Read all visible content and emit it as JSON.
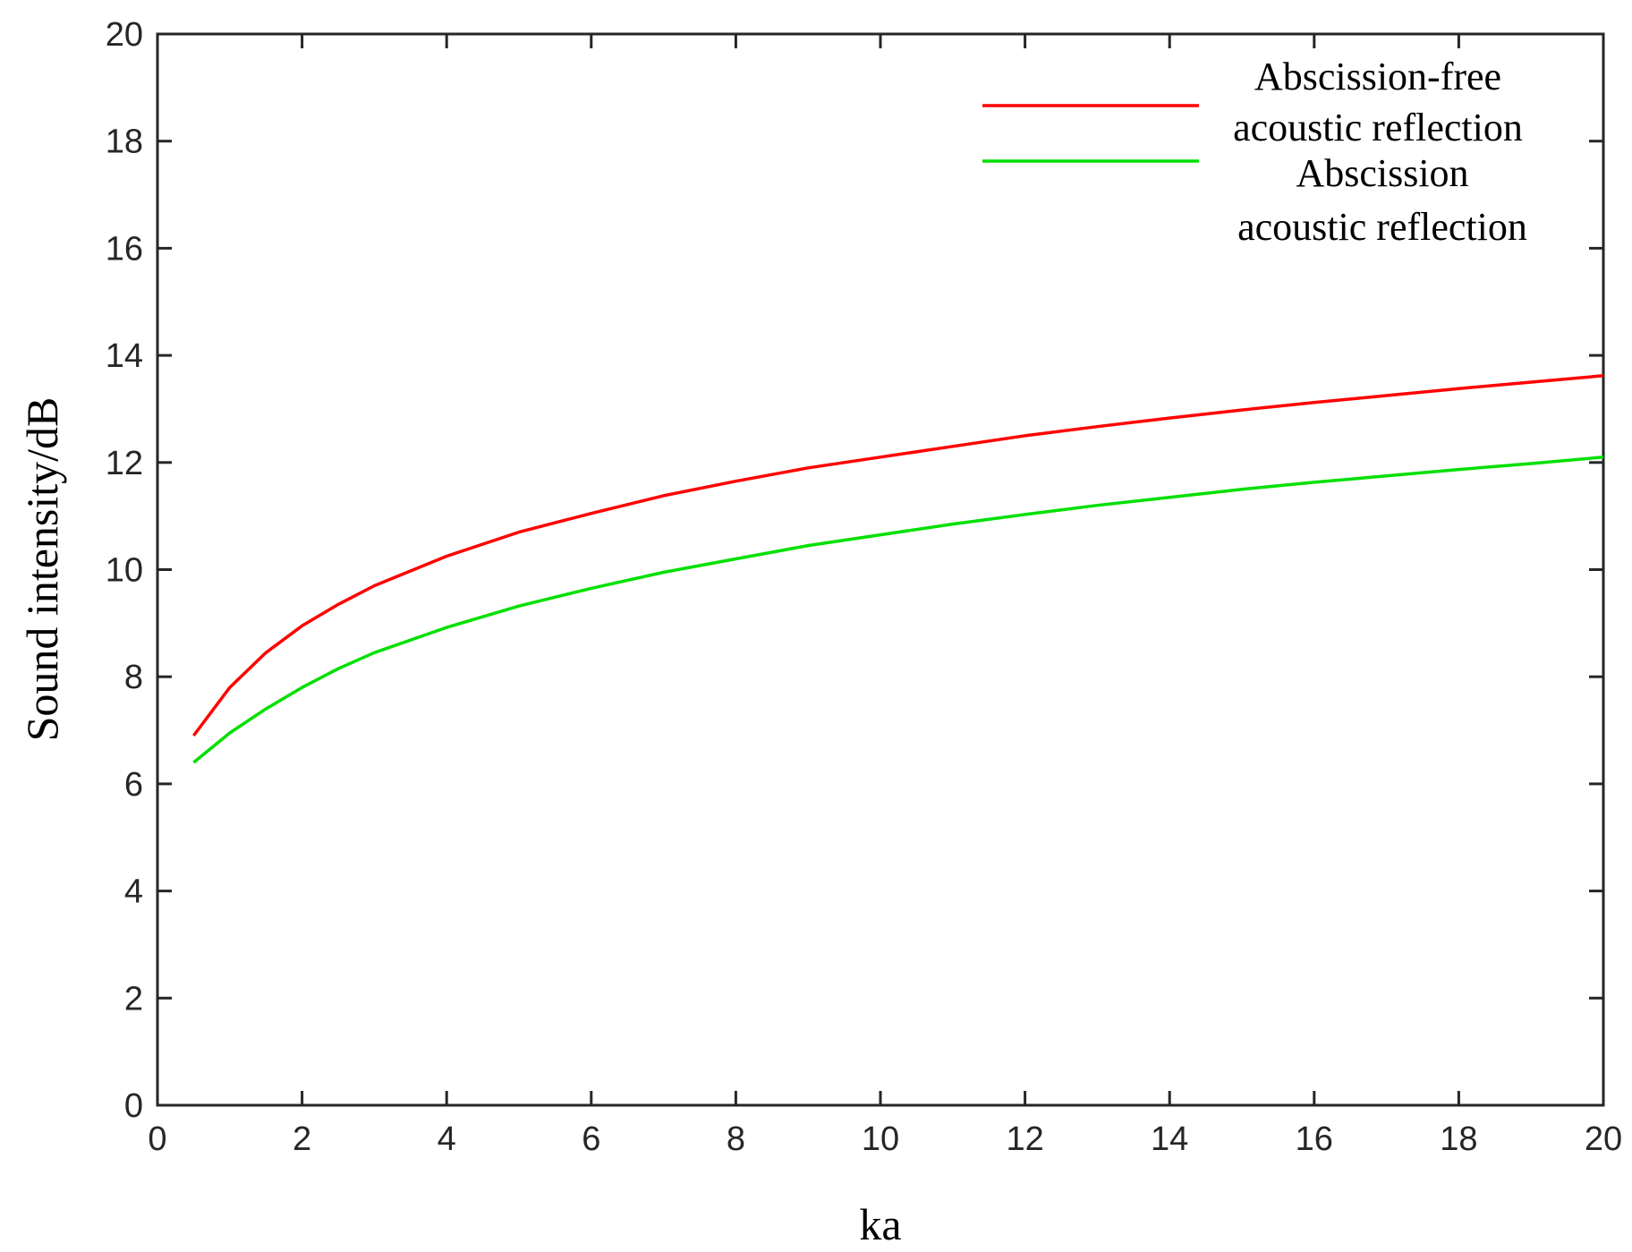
{
  "chart_data": {
    "type": "line",
    "title": "",
    "xlabel": "ka",
    "ylabel": "Sound intensity/dB",
    "xlim": [
      0,
      20
    ],
    "ylim": [
      0,
      20
    ],
    "xticks": [
      0,
      2,
      4,
      6,
      8,
      10,
      12,
      14,
      16,
      18,
      20
    ],
    "yticks": [
      0,
      2,
      4,
      6,
      8,
      10,
      12,
      14,
      16,
      18,
      20
    ],
    "grid": false,
    "legend_position": "top-right",
    "x": [
      0.5,
      1,
      1.5,
      2,
      2.5,
      3,
      4,
      5,
      6,
      7,
      8,
      9,
      10,
      11,
      12,
      13,
      14,
      15,
      16,
      17,
      18,
      19,
      20
    ],
    "series": [
      {
        "name_lines": [
          "Abscission-free",
          "acoustic reflection"
        ],
        "color": "#ff0000",
        "values": [
          6.9,
          7.8,
          8.45,
          8.95,
          9.35,
          9.7,
          10.25,
          10.7,
          11.05,
          11.38,
          11.65,
          11.9,
          12.1,
          12.3,
          12.5,
          12.67,
          12.83,
          12.98,
          13.12,
          13.25,
          13.38,
          13.5,
          13.62
        ]
      },
      {
        "name_lines": [
          "Abscission",
          "acoustic reflection"
        ],
        "color": "#00e000",
        "values": [
          6.4,
          6.95,
          7.4,
          7.8,
          8.15,
          8.45,
          8.92,
          9.32,
          9.65,
          9.95,
          10.2,
          10.45,
          10.65,
          10.85,
          11.03,
          11.2,
          11.35,
          11.5,
          11.63,
          11.75,
          11.87,
          11.98,
          12.1
        ]
      }
    ]
  }
}
